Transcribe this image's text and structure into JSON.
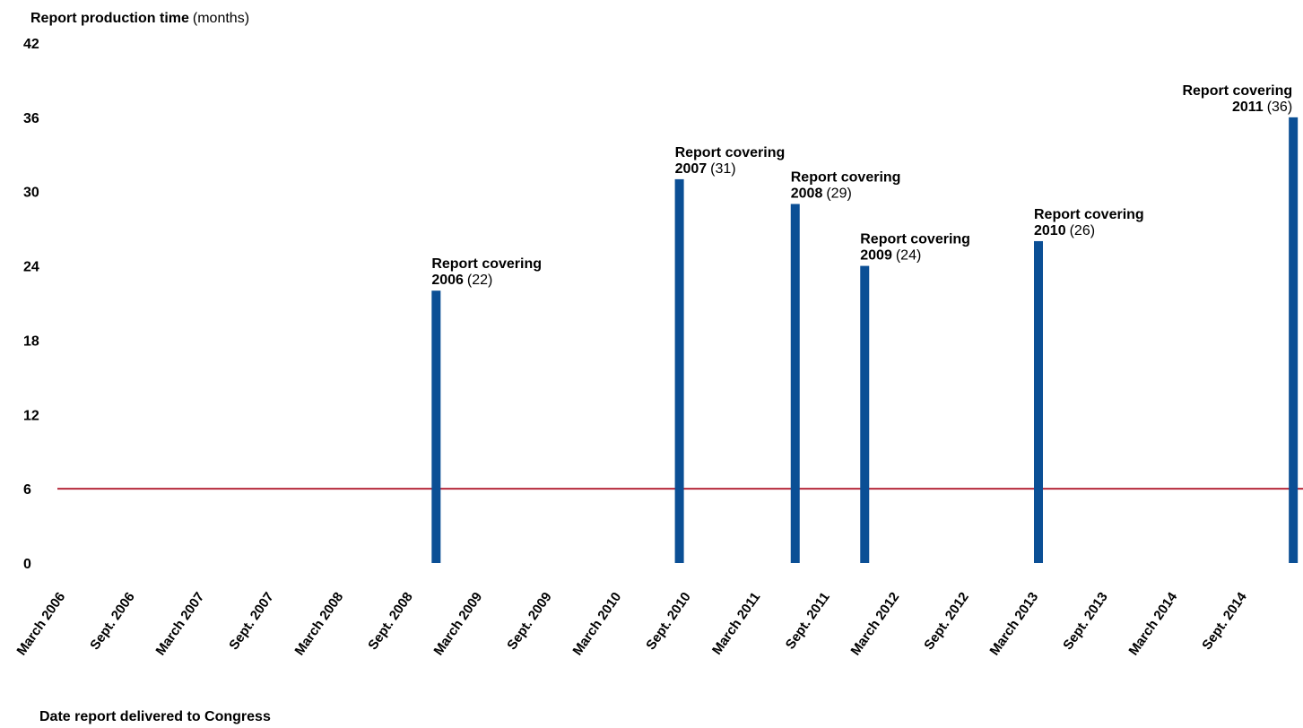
{
  "chart_data": {
    "type": "bar",
    "ylabel": "Report production time",
    "ylabel_unit": "(months)",
    "xlabel": "Date report delivered to Congress",
    "ylim": [
      0,
      42
    ],
    "y_ticks": [
      0,
      6,
      12,
      18,
      24,
      30,
      36,
      42
    ],
    "x_ticks": [
      "March 2006",
      "Sept. 2006",
      "March 2007",
      "Sept. 2007",
      "March 2008",
      "Sept. 2008",
      "March 2009",
      "Sept. 2009",
      "March 2010",
      "Sept. 2010",
      "March 2011",
      "Sept. 2011",
      "March 2012",
      "Sept. 2012",
      "March 2013",
      "Sept. 2013",
      "March 2014",
      "Sept. 2014"
    ],
    "reference_line": {
      "value": 6,
      "color": "#b5283a"
    },
    "bar_color": "#0b4f95",
    "bars": [
      {
        "delivered": "2008-11",
        "value": 22,
        "label_prefix": "Report covering",
        "label_year": "2006",
        "label_value": "(22)"
      },
      {
        "delivered": "2010-08",
        "value": 31,
        "label_prefix": "Report covering",
        "label_year": "2007",
        "label_value": "(31)"
      },
      {
        "delivered": "2011-06",
        "value": 29,
        "label_prefix": "Report covering",
        "label_year": "2008",
        "label_value": "(29)"
      },
      {
        "delivered": "2011-12",
        "value": 24,
        "label_prefix": "Report covering",
        "label_year": "2009",
        "label_value": "(24)"
      },
      {
        "delivered": "2013-03",
        "value": 26,
        "label_prefix": "Report covering",
        "label_year": "2010",
        "label_value": "(26)"
      },
      {
        "delivered": "2015-01",
        "value": 36,
        "label_prefix": "Report covering",
        "label_year": "2011",
        "label_value": "(36)"
      }
    ]
  }
}
